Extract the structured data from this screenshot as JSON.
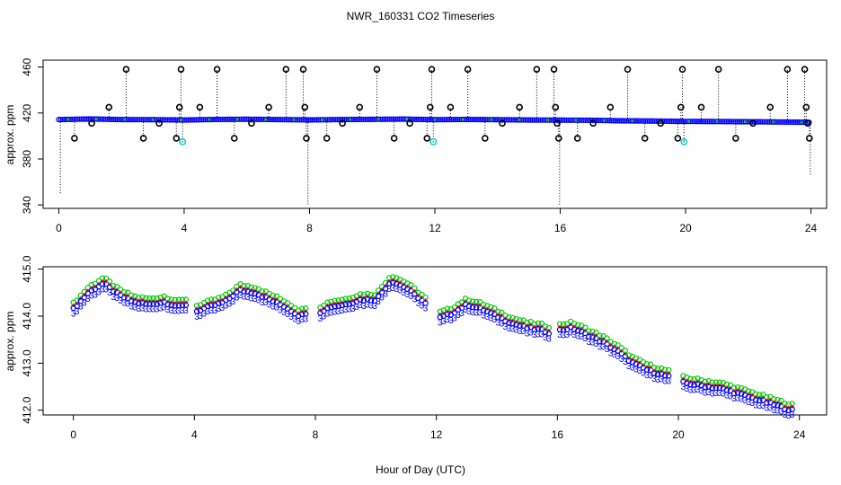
{
  "title": "NWR_160331  CO2 Timeseries",
  "xlabel": "Hour of Day (UTC)",
  "colors": {
    "primary": "#0000ff",
    "secondary": "#00c8c8",
    "outlier": "#000000",
    "green": "#00cc00",
    "red": "#ff0000"
  },
  "chart_data": [
    {
      "type": "scatter",
      "name": "top-panel",
      "title": "",
      "xlabel": "",
      "ylabel": "approx. ppm",
      "xlim": [
        -0.5,
        24.5
      ],
      "ylim": [
        337,
        466
      ],
      "xticks": [
        0,
        4,
        8,
        12,
        16,
        20,
        24
      ],
      "yticks": [
        340,
        380,
        420,
        460
      ],
      "baseline": {
        "x": [
          0,
          1,
          2,
          3,
          4,
          5,
          6,
          7,
          8,
          9,
          10,
          11,
          12,
          13,
          14,
          15,
          16,
          17,
          18,
          19,
          20,
          21,
          22,
          23,
          24
        ],
        "y": [
          414.3,
          414.8,
          414.3,
          414.2,
          413.9,
          414.4,
          414.6,
          414.3,
          414.0,
          414.3,
          414.5,
          414.7,
          414.2,
          414.4,
          414.2,
          413.9,
          413.8,
          413.7,
          413.2,
          413.0,
          412.7,
          412.6,
          412.4,
          412.2,
          411.9
        ]
      },
      "outliers": [
        {
          "x": 0.05,
          "y": 350,
          "marker": "none"
        },
        {
          "x": 0.5,
          "y": 398,
          "marker": "circle"
        },
        {
          "x": 1.05,
          "y": 411,
          "marker": "circle"
        },
        {
          "x": 1.6,
          "y": 425,
          "marker": "circle"
        },
        {
          "x": 2.15,
          "y": 458,
          "marker": "circle"
        },
        {
          "x": 2.7,
          "y": 398,
          "marker": "circle"
        },
        {
          "x": 3.2,
          "y": 411,
          "marker": "circle"
        },
        {
          "x": 3.75,
          "y": 398,
          "marker": "circle"
        },
        {
          "x": 3.85,
          "y": 425,
          "marker": "circle"
        },
        {
          "x": 3.9,
          "y": 458,
          "marker": "circle"
        },
        {
          "x": 3.95,
          "y": 395,
          "marker": "cyan"
        },
        {
          "x": 4.5,
          "y": 425,
          "marker": "circle"
        },
        {
          "x": 5.05,
          "y": 458,
          "marker": "circle"
        },
        {
          "x": 5.6,
          "y": 398,
          "marker": "circle"
        },
        {
          "x": 6.15,
          "y": 411,
          "marker": "circle"
        },
        {
          "x": 6.7,
          "y": 425,
          "marker": "circle"
        },
        {
          "x": 7.25,
          "y": 458,
          "marker": "circle"
        },
        {
          "x": 7.8,
          "y": 458,
          "marker": "circle"
        },
        {
          "x": 7.85,
          "y": 425,
          "marker": "circle"
        },
        {
          "x": 7.9,
          "y": 398,
          "marker": "circle"
        },
        {
          "x": 7.95,
          "y": 340,
          "marker": "none"
        },
        {
          "x": 8.55,
          "y": 398,
          "marker": "circle"
        },
        {
          "x": 9.05,
          "y": 411,
          "marker": "circle"
        },
        {
          "x": 9.6,
          "y": 425,
          "marker": "circle"
        },
        {
          "x": 10.15,
          "y": 458,
          "marker": "circle"
        },
        {
          "x": 10.7,
          "y": 398,
          "marker": "circle"
        },
        {
          "x": 11.2,
          "y": 411,
          "marker": "circle"
        },
        {
          "x": 11.75,
          "y": 398,
          "marker": "circle"
        },
        {
          "x": 11.85,
          "y": 425,
          "marker": "circle"
        },
        {
          "x": 11.9,
          "y": 458,
          "marker": "circle"
        },
        {
          "x": 11.95,
          "y": 395,
          "marker": "cyan"
        },
        {
          "x": 12.5,
          "y": 425,
          "marker": "circle"
        },
        {
          "x": 13.05,
          "y": 458,
          "marker": "circle"
        },
        {
          "x": 13.6,
          "y": 398,
          "marker": "circle"
        },
        {
          "x": 14.15,
          "y": 411,
          "marker": "circle"
        },
        {
          "x": 14.7,
          "y": 425,
          "marker": "circle"
        },
        {
          "x": 15.25,
          "y": 458,
          "marker": "circle"
        },
        {
          "x": 15.8,
          "y": 458,
          "marker": "circle"
        },
        {
          "x": 15.85,
          "y": 425,
          "marker": "circle"
        },
        {
          "x": 15.9,
          "y": 411,
          "marker": "circle"
        },
        {
          "x": 15.95,
          "y": 398,
          "marker": "circle"
        },
        {
          "x": 15.98,
          "y": 340,
          "marker": "none"
        },
        {
          "x": 16.55,
          "y": 398,
          "marker": "circle"
        },
        {
          "x": 17.05,
          "y": 411,
          "marker": "circle"
        },
        {
          "x": 17.6,
          "y": 425,
          "marker": "circle"
        },
        {
          "x": 18.15,
          "y": 458,
          "marker": "circle"
        },
        {
          "x": 18.7,
          "y": 398,
          "marker": "circle"
        },
        {
          "x": 19.2,
          "y": 411,
          "marker": "circle"
        },
        {
          "x": 19.75,
          "y": 398,
          "marker": "circle"
        },
        {
          "x": 19.85,
          "y": 425,
          "marker": "circle"
        },
        {
          "x": 19.9,
          "y": 458,
          "marker": "circle"
        },
        {
          "x": 19.95,
          "y": 395,
          "marker": "cyan"
        },
        {
          "x": 20.5,
          "y": 425,
          "marker": "circle"
        },
        {
          "x": 21.05,
          "y": 458,
          "marker": "circle"
        },
        {
          "x": 21.6,
          "y": 398,
          "marker": "circle"
        },
        {
          "x": 22.15,
          "y": 411,
          "marker": "circle"
        },
        {
          "x": 22.7,
          "y": 425,
          "marker": "circle"
        },
        {
          "x": 23.25,
          "y": 458,
          "marker": "circle"
        },
        {
          "x": 23.8,
          "y": 458,
          "marker": "circle"
        },
        {
          "x": 23.85,
          "y": 425,
          "marker": "circle"
        },
        {
          "x": 23.9,
          "y": 411,
          "marker": "circle"
        },
        {
          "x": 23.95,
          "y": 398,
          "marker": "circle"
        },
        {
          "x": 23.98,
          "y": 365,
          "marker": "none"
        }
      ]
    },
    {
      "type": "scatter",
      "name": "bottom-panel",
      "title": "",
      "xlabel": "",
      "ylabel": "approx. ppm",
      "xlim": [
        -1.0,
        24.9
      ],
      "ylim": [
        411.9,
        415.05
      ],
      "xticks": [
        0,
        4,
        8,
        12,
        16,
        20,
        24
      ],
      "yticks": [
        412.0,
        413.0,
        414.0,
        415.0
      ],
      "yticklabels": [
        "412.0",
        "413.0",
        "414.0",
        "415.0"
      ],
      "gaps": [
        [
          3.75,
          4.05
        ],
        [
          7.75,
          8.05
        ],
        [
          11.75,
          12.05
        ],
        [
          15.75,
          16.05
        ],
        [
          19.75,
          20.05
        ]
      ],
      "series_offsets": [
        {
          "name": "green",
          "offset": 0.12,
          "glyph": "o",
          "color": "#00cc00"
        },
        {
          "name": "red",
          "offset": 0.06,
          "glyph": "+",
          "color": "#ff0000"
        },
        {
          "name": "blue",
          "offset": 0.0,
          "glyph": "o",
          "color": "#0000ff"
        },
        {
          "name": "blue-3",
          "offset": -0.1,
          "glyph": "3",
          "color": "#0000ff"
        }
      ],
      "trend": {
        "x": [
          0,
          0.5,
          1.0,
          1.5,
          2.0,
          2.5,
          3.0,
          3.5,
          3.75,
          4.05,
          4.5,
          5.0,
          5.5,
          6.0,
          6.5,
          7.0,
          7.5,
          7.75,
          8.05,
          8.5,
          9.0,
          9.5,
          10.0,
          10.5,
          11.0,
          11.5,
          11.75,
          12.05,
          12.5,
          13.0,
          13.5,
          14.0,
          14.5,
          15.0,
          15.5,
          15.75,
          16.05,
          16.5,
          17.0,
          17.5,
          18.0,
          18.5,
          19.0,
          19.5,
          19.75,
          20.05,
          20.5,
          21.0,
          21.5,
          22.0,
          22.5,
          23.0,
          23.5,
          23.75
        ],
        "y": [
          414.15,
          414.5,
          414.7,
          414.45,
          414.3,
          414.25,
          414.3,
          414.2,
          414.25,
          414.1,
          414.2,
          414.3,
          414.55,
          414.5,
          414.35,
          414.2,
          414.0,
          414.1,
          414.05,
          414.2,
          414.25,
          414.35,
          414.35,
          414.75,
          414.6,
          414.35,
          414.2,
          413.95,
          414.05,
          414.25,
          414.15,
          414.0,
          413.85,
          413.75,
          413.7,
          413.65,
          413.7,
          413.75,
          413.6,
          413.45,
          413.25,
          413.0,
          412.85,
          412.75,
          412.7,
          412.6,
          412.55,
          412.5,
          412.45,
          412.35,
          412.25,
          412.15,
          412.05,
          412.0
        ]
      }
    }
  ]
}
